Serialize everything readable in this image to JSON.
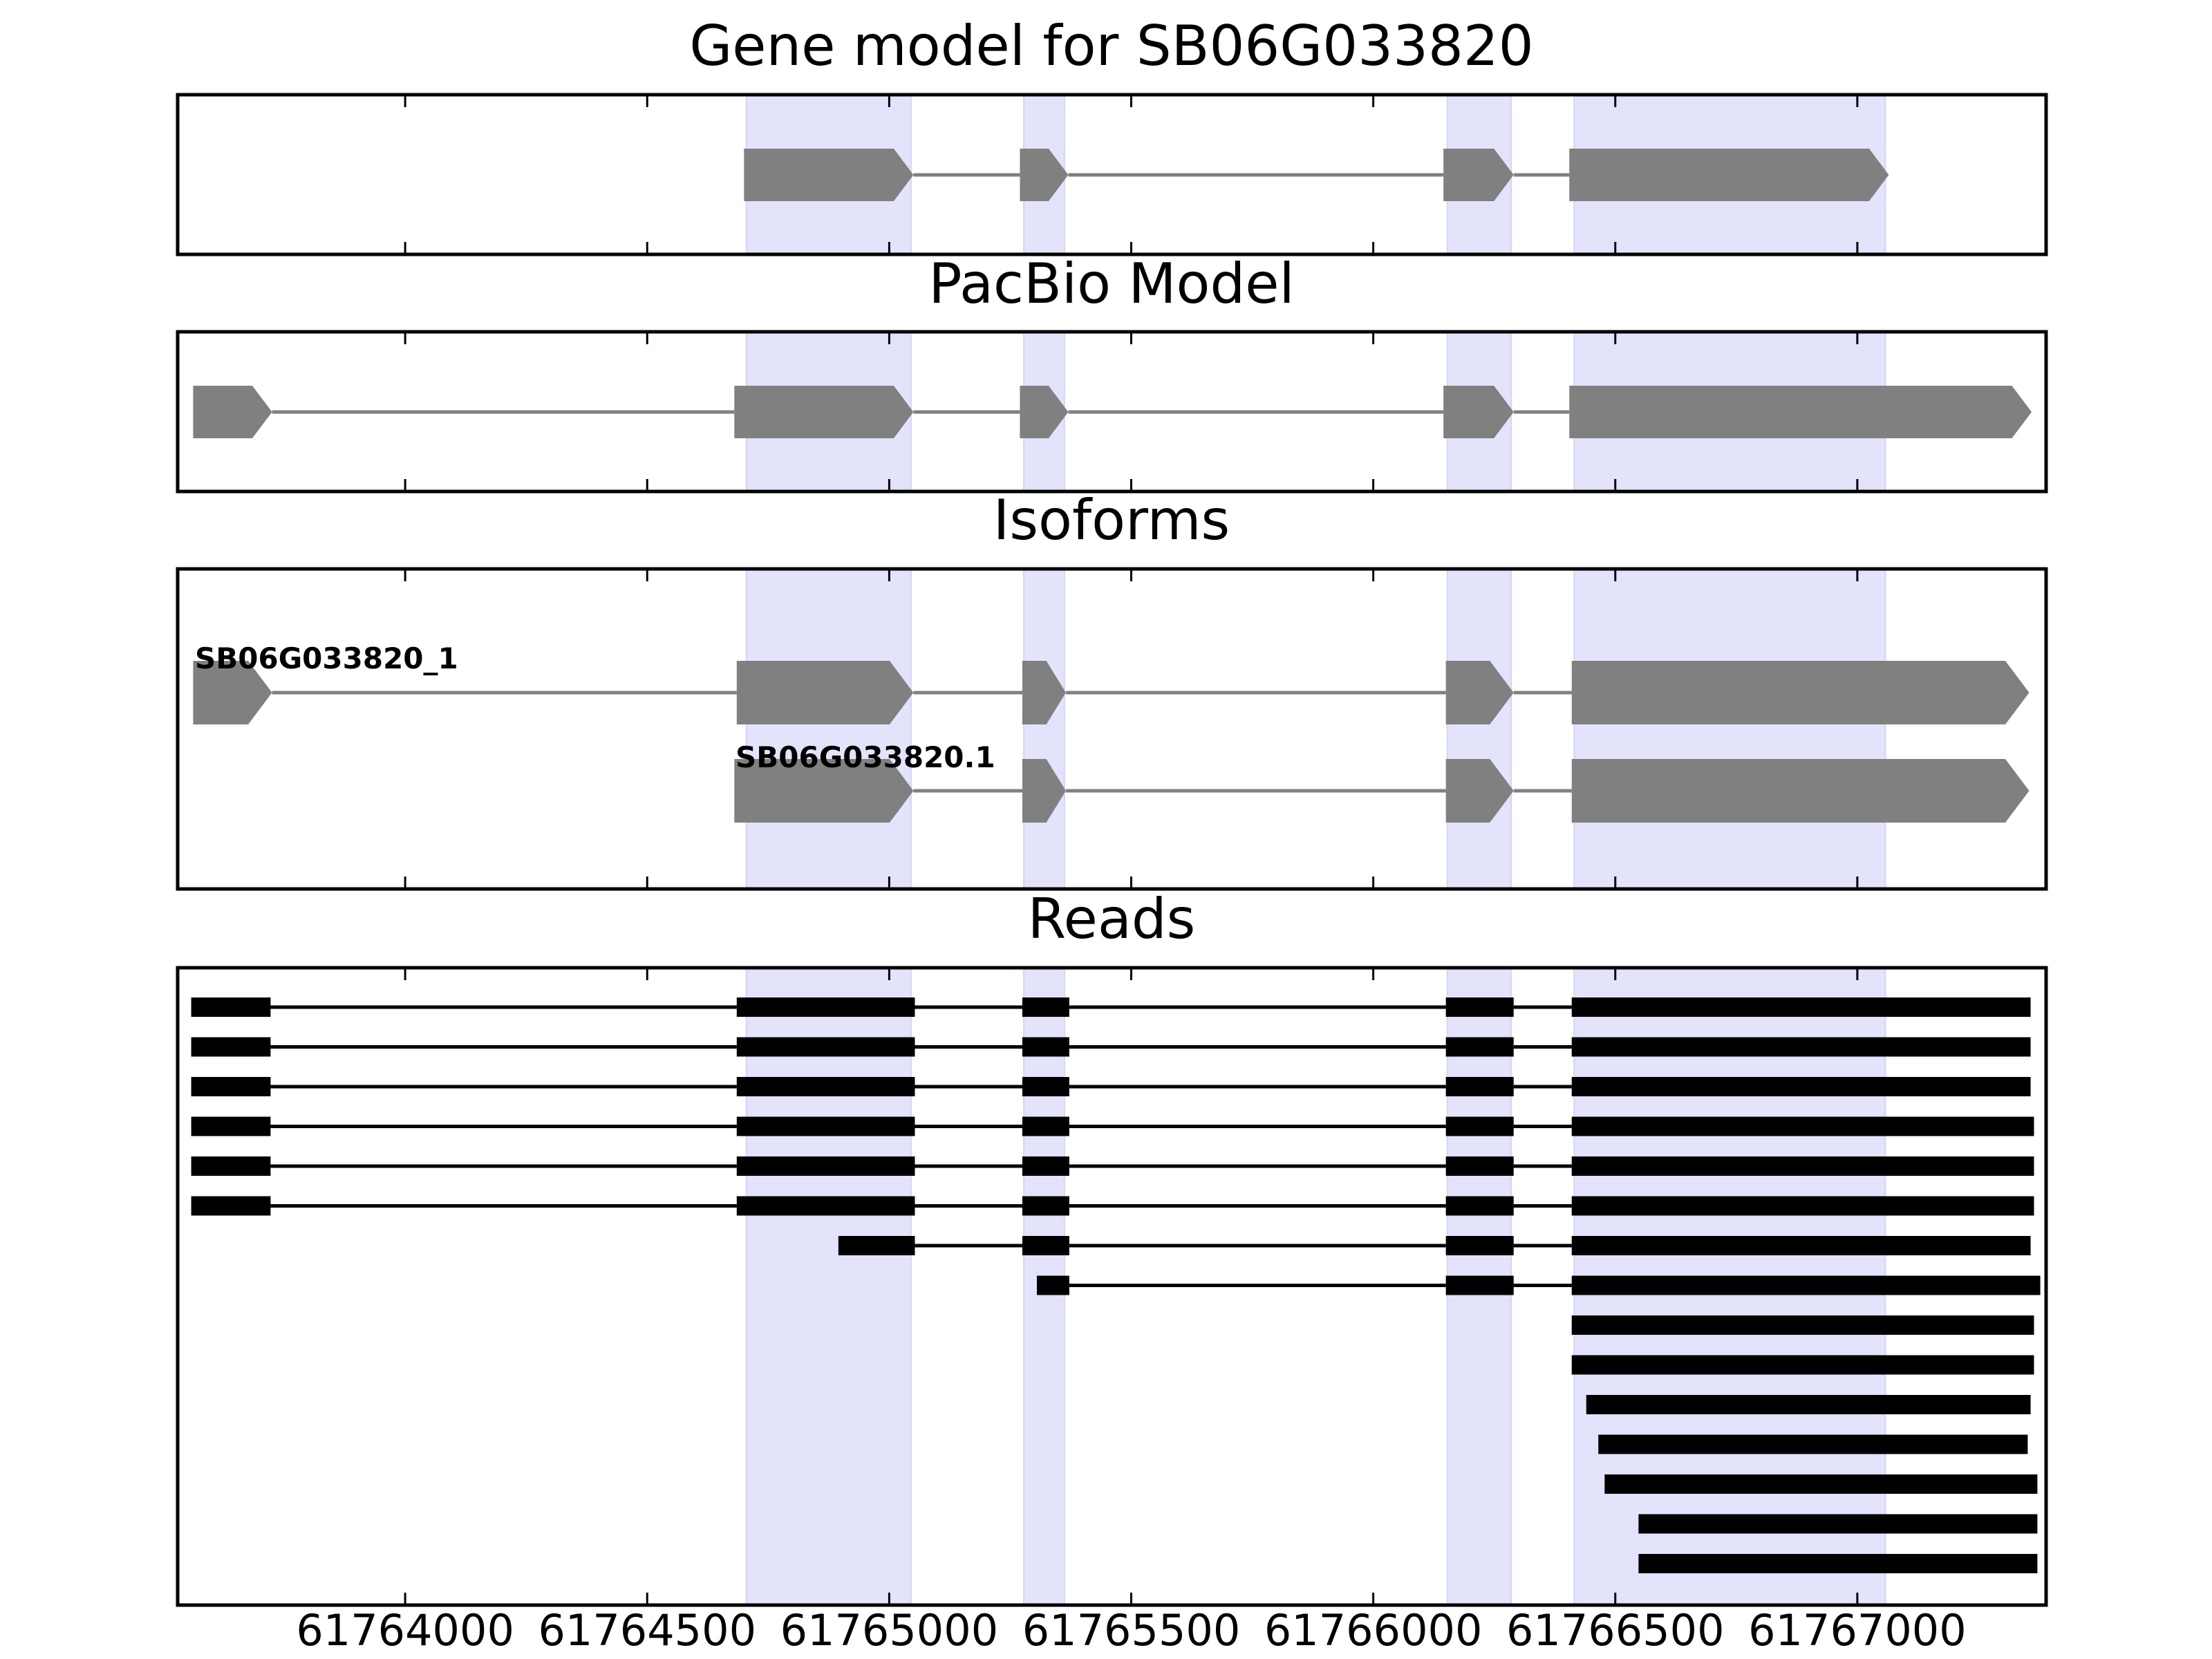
{
  "chart_data": {
    "type": "gene-track",
    "xlim": [
      61763530,
      61767390
    ],
    "ticks": [
      61764000,
      61764500,
      61765000,
      61765500,
      61766000,
      61766500,
      61767000
    ],
    "tick_labels": [
      "61764000",
      "61764500",
      "61765000",
      "61765500",
      "61766000",
      "61766500",
      "61767000"
    ],
    "highlight_regions": [
      [
        61764705,
        61765045
      ],
      [
        61765278,
        61765362
      ],
      [
        61766153,
        61766285
      ],
      [
        61766415,
        61767058
      ]
    ],
    "colors": {
      "feature": "#808080",
      "intron": "#808080",
      "read": "#000000",
      "highlight": "#e3e3fc",
      "axes": "#000000"
    },
    "panels": [
      {
        "id": "gene-model",
        "title": "Gene model for SB06G033820",
        "tracks": [
          {
            "label": "",
            "strand": "+",
            "exons": [
              [
                61764700,
                61765050
              ],
              [
                61765270,
                61765370
              ],
              [
                61766145,
                61766290
              ],
              [
                61766405,
                61767065
              ]
            ]
          }
        ]
      },
      {
        "id": "pacbio-model",
        "title": "PacBio Model",
        "tracks": [
          {
            "label": "",
            "strand": "+",
            "exons": [
              [
                61763562,
                61763725
              ],
              [
                61764680,
                61765050
              ],
              [
                61765270,
                61765370
              ],
              [
                61766145,
                61766290
              ],
              [
                61766405,
                61767360
              ]
            ]
          }
        ]
      },
      {
        "id": "isoforms",
        "title": "Isoforms",
        "tracks": [
          {
            "label": "SB06G033820_1",
            "strand": "+",
            "exons": [
              [
                61763562,
                61763725
              ],
              [
                61764685,
                61765050
              ],
              [
                61765275,
                61765365
              ],
              [
                61766150,
                61766290
              ],
              [
                61766410,
                61767355
              ]
            ]
          },
          {
            "label": "SB06G033820.1",
            "strand": "+",
            "exons": [
              [
                61764680,
                61765050
              ],
              [
                61765275,
                61765365
              ],
              [
                61766150,
                61766290
              ],
              [
                61766410,
                61767355
              ]
            ]
          }
        ]
      },
      {
        "id": "reads",
        "title": "Reads",
        "tracks": [
          {
            "exons": [
              [
                61763558,
                61763722
              ],
              [
                61764685,
                61765053
              ],
              [
                61765275,
                61765372
              ],
              [
                61766150,
                61766290
              ],
              [
                61766410,
                61767358
              ]
            ]
          },
          {
            "exons": [
              [
                61763558,
                61763722
              ],
              [
                61764685,
                61765053
              ],
              [
                61765275,
                61765372
              ],
              [
                61766150,
                61766290
              ],
              [
                61766410,
                61767358
              ]
            ]
          },
          {
            "exons": [
              [
                61763558,
                61763722
              ],
              [
                61764685,
                61765053
              ],
              [
                61765275,
                61765372
              ],
              [
                61766150,
                61766290
              ],
              [
                61766410,
                61767358
              ]
            ]
          },
          {
            "exons": [
              [
                61763558,
                61763722
              ],
              [
                61764685,
                61765053
              ],
              [
                61765275,
                61765372
              ],
              [
                61766150,
                61766290
              ],
              [
                61766410,
                61767365
              ]
            ]
          },
          {
            "exons": [
              [
                61763558,
                61763722
              ],
              [
                61764685,
                61765053
              ],
              [
                61765275,
                61765372
              ],
              [
                61766150,
                61766290
              ],
              [
                61766410,
                61767365
              ]
            ]
          },
          {
            "exons": [
              [
                61763558,
                61763722
              ],
              [
                61764685,
                61765053
              ],
              [
                61765275,
                61765372
              ],
              [
                61766150,
                61766290
              ],
              [
                61766410,
                61767365
              ]
            ]
          },
          {
            "exons": [
              [
                61764895,
                61765053
              ],
              [
                61765275,
                61765372
              ],
              [
                61766150,
                61766290
              ],
              [
                61766410,
                61767358
              ]
            ]
          },
          {
            "exons": [
              [
                61765305,
                61765372
              ],
              [
                61766150,
                61766290
              ],
              [
                61766410,
                61767378
              ]
            ]
          },
          {
            "exons": [
              [
                61766410,
                61767365
              ]
            ]
          },
          {
            "exons": [
              [
                61766410,
                61767365
              ]
            ]
          },
          {
            "exons": [
              [
                61766440,
                61767358
              ]
            ]
          },
          {
            "exons": [
              [
                61766465,
                61767352
              ]
            ]
          },
          {
            "exons": [
              [
                61766478,
                61767372
              ]
            ]
          },
          {
            "exons": [
              [
                61766548,
                61767372
              ]
            ]
          },
          {
            "exons": [
              [
                61766548,
                61767372
              ]
            ]
          }
        ]
      }
    ]
  }
}
